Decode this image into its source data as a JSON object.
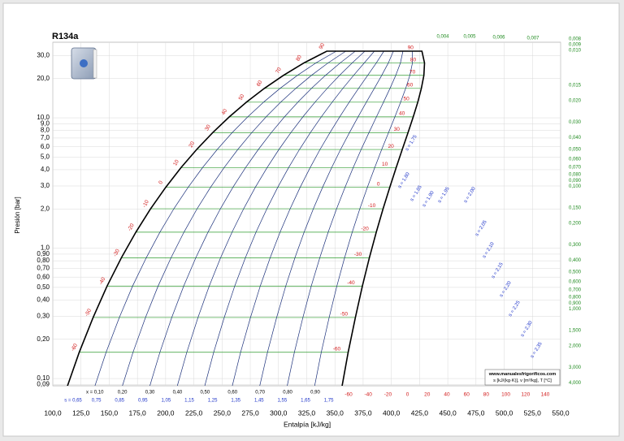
{
  "chart_data": {
    "type": "ph-diagram",
    "title": "R134a",
    "ylabel": "Presión [bar]",
    "xlabel": "Entalpía [kJ/kg]",
    "log_y": true,
    "grid": true,
    "xlim": [
      100,
      550
    ],
    "ylim": [
      0.088,
      38
    ],
    "xticks": [
      {
        "value": 100,
        "label": "100,0"
      },
      {
        "value": 125,
        "label": "125,0"
      },
      {
        "value": 150,
        "label": "150,0"
      },
      {
        "value": 175,
        "label": "175,0"
      },
      {
        "value": 200,
        "label": "200,0"
      },
      {
        "value": 225,
        "label": "225,0"
      },
      {
        "value": 250,
        "label": "250,0"
      },
      {
        "value": 275,
        "label": "275,0"
      },
      {
        "value": 300,
        "label": "300,0"
      },
      {
        "value": 325,
        "label": "325,0"
      },
      {
        "value": 350,
        "label": "350,0"
      },
      {
        "value": 375,
        "label": "375,0"
      },
      {
        "value": 400,
        "label": "400,0"
      },
      {
        "value": 425,
        "label": "425,0"
      },
      {
        "value": 450,
        "label": "450,0"
      },
      {
        "value": 475,
        "label": "475,0"
      },
      {
        "value": 500,
        "label": "500,0"
      },
      {
        "value": 525,
        "label": "525,0"
      },
      {
        "value": 550,
        "label": "550,0"
      }
    ],
    "yticks": [
      {
        "value": 30,
        "label": "30,0"
      },
      {
        "value": 20,
        "label": "20,0"
      },
      {
        "value": 10,
        "label": "10,0"
      },
      {
        "value": 9,
        "label": "9,0"
      },
      {
        "value": 8,
        "label": "8,0"
      },
      {
        "value": 7,
        "label": "7,0"
      },
      {
        "value": 6,
        "label": "6,0"
      },
      {
        "value": 5,
        "label": "5,0"
      },
      {
        "value": 4,
        "label": "4,0"
      },
      {
        "value": 3,
        "label": "3,0"
      },
      {
        "value": 2,
        "label": "2,0"
      },
      {
        "value": 1,
        "label": "1,0"
      },
      {
        "value": 0.9,
        "label": "0,90"
      },
      {
        "value": 0.8,
        "label": "0,80"
      },
      {
        "value": 0.7,
        "label": "0,70"
      },
      {
        "value": 0.6,
        "label": "0,60"
      },
      {
        "value": 0.5,
        "label": "0,50"
      },
      {
        "value": 0.4,
        "label": "0,40"
      },
      {
        "value": 0.3,
        "label": "0,30"
      },
      {
        "value": 0.2,
        "label": "0,20"
      },
      {
        "value": 0.1,
        "label": "0,10"
      },
      {
        "value": 0.09,
        "label": "0,09"
      }
    ],
    "saturation": {
      "p": [
        0.08,
        0.159,
        0.294,
        0.512,
        0.844,
        1.327,
        2.006,
        2.928,
        4.146,
        5.717,
        7.702,
        10.17,
        13.18,
        16.82,
        21.17,
        26.33,
        32.44
      ],
      "h_liquid": [
        111.4,
        123.4,
        135.7,
        148.1,
        160.8,
        173.6,
        186.7,
        200.0,
        213.6,
        227.5,
        241.7,
        256.4,
        271.6,
        287.5,
        304.3,
        322.4,
        342.8
      ],
      "h_vapor": [
        355.5,
        361.7,
        368.1,
        374.3,
        380.5,
        386.6,
        392.7,
        398.6,
        404.3,
        409.7,
        414.8,
        419.4,
        423.4,
        426.6,
        428.8,
        429.4,
        427.1
      ],
      "color": "#000000"
    },
    "saturation_temperature_labels": [
      -60,
      -50,
      -40,
      -30,
      -20,
      -10,
      0,
      10,
      20,
      30,
      40,
      50,
      60,
      70,
      80,
      90
    ],
    "qualities": [
      {
        "value": 0.1,
        "label": "x = 0,10"
      },
      {
        "value": 0.2,
        "label": "0,20"
      },
      {
        "value": 0.3,
        "label": "0,30"
      },
      {
        "value": 0.4,
        "label": "0,40"
      },
      {
        "value": 0.5,
        "label": "0,50"
      },
      {
        "value": 0.6,
        "label": "0,60"
      },
      {
        "value": 0.7,
        "label": "0,70"
      },
      {
        "value": 0.8,
        "label": "0,80"
      },
      {
        "value": 0.9,
        "label": "0,90"
      }
    ],
    "entropy_labels": [
      {
        "value": 0.65,
        "label": "s = 0,65"
      },
      {
        "value": 0.75,
        "label": "0,75"
      },
      {
        "value": 0.85,
        "label": "0,85"
      },
      {
        "value": 0.95,
        "label": "0,95"
      },
      {
        "value": 1.05,
        "label": "1,05"
      },
      {
        "value": 1.15,
        "label": "1,15"
      },
      {
        "value": 1.25,
        "label": "1,25"
      },
      {
        "value": 1.35,
        "label": "1,35"
      },
      {
        "value": 1.45,
        "label": "1,45"
      },
      {
        "value": 1.55,
        "label": "1,55"
      },
      {
        "value": 1.65,
        "label": "1,65"
      },
      {
        "value": 1.75,
        "label": "1,75"
      }
    ],
    "superheat_entropy_labels": [
      {
        "value": 1.75,
        "label": "s = 1,75"
      },
      {
        "value": 1.8,
        "label": "s = 1,80"
      },
      {
        "value": 1.85,
        "label": "s = 1,85"
      },
      {
        "value": 1.9,
        "label": "s = 1,90"
      },
      {
        "value": 1.95,
        "label": "s = 1,95"
      },
      {
        "value": 2.0,
        "label": "s = 2,00"
      },
      {
        "value": 2.05,
        "label": "s = 2,05"
      },
      {
        "value": 2.1,
        "label": "s = 2,10"
      },
      {
        "value": 2.15,
        "label": "s = 2,15"
      },
      {
        "value": 2.2,
        "label": "s = 2,20"
      },
      {
        "value": 2.25,
        "label": "s = 2,25"
      },
      {
        "value": 2.3,
        "label": "s = 2,30"
      },
      {
        "value": 2.35,
        "label": "s = 2,35"
      }
    ],
    "bottom_temperature_labels": [
      -60,
      -40,
      -20,
      0,
      20,
      40,
      60,
      80,
      100,
      120,
      140
    ],
    "volume_labels": [
      {
        "value": 0.004,
        "label": "0,004"
      },
      {
        "value": 0.005,
        "label": "0,005"
      },
      {
        "value": 0.006,
        "label": "0,006"
      },
      {
        "value": 0.007,
        "label": "0,007"
      },
      {
        "value": 0.008,
        "label": "0,008"
      },
      {
        "value": 0.009,
        "label": "0,009"
      },
      {
        "value": 0.01,
        "label": "0,010"
      },
      {
        "value": 0.015,
        "label": "0,015"
      },
      {
        "value": 0.02,
        "label": "0,020"
      },
      {
        "value": 0.03,
        "label": "0,030"
      },
      {
        "value": 0.04,
        "label": "0,040"
      },
      {
        "value": 0.05,
        "label": "0,050"
      },
      {
        "value": 0.06,
        "label": "0,060"
      },
      {
        "value": 0.07,
        "label": "0,070"
      },
      {
        "value": 0.08,
        "label": "0,080"
      },
      {
        "value": 0.09,
        "label": "0,090"
      },
      {
        "value": 0.1,
        "label": "0,100"
      },
      {
        "value": 0.15,
        "label": "0,150"
      },
      {
        "value": 0.2,
        "label": "0,200"
      },
      {
        "value": 0.3,
        "label": "0,300"
      },
      {
        "value": 0.4,
        "label": "0,400"
      },
      {
        "value": 0.5,
        "label": "0,500"
      },
      {
        "value": 0.6,
        "label": "0,600"
      },
      {
        "value": 0.7,
        "label": "0,700"
      },
      {
        "value": 0.8,
        "label": "0,800"
      },
      {
        "value": 0.9,
        "label": "0,900"
      },
      {
        "value": 1.0,
        "label": "1,000"
      },
      {
        "value": 1.5,
        "label": "1,500"
      },
      {
        "value": 2.0,
        "label": "2,000"
      },
      {
        "value": 3.0,
        "label": "3,000"
      },
      {
        "value": 4.0,
        "label": "4,000"
      }
    ],
    "source": "www.manualesfrigorificos.com",
    "units_note": "s [kJ/(kg·K)], v [m³/kg], T [°C]"
  }
}
